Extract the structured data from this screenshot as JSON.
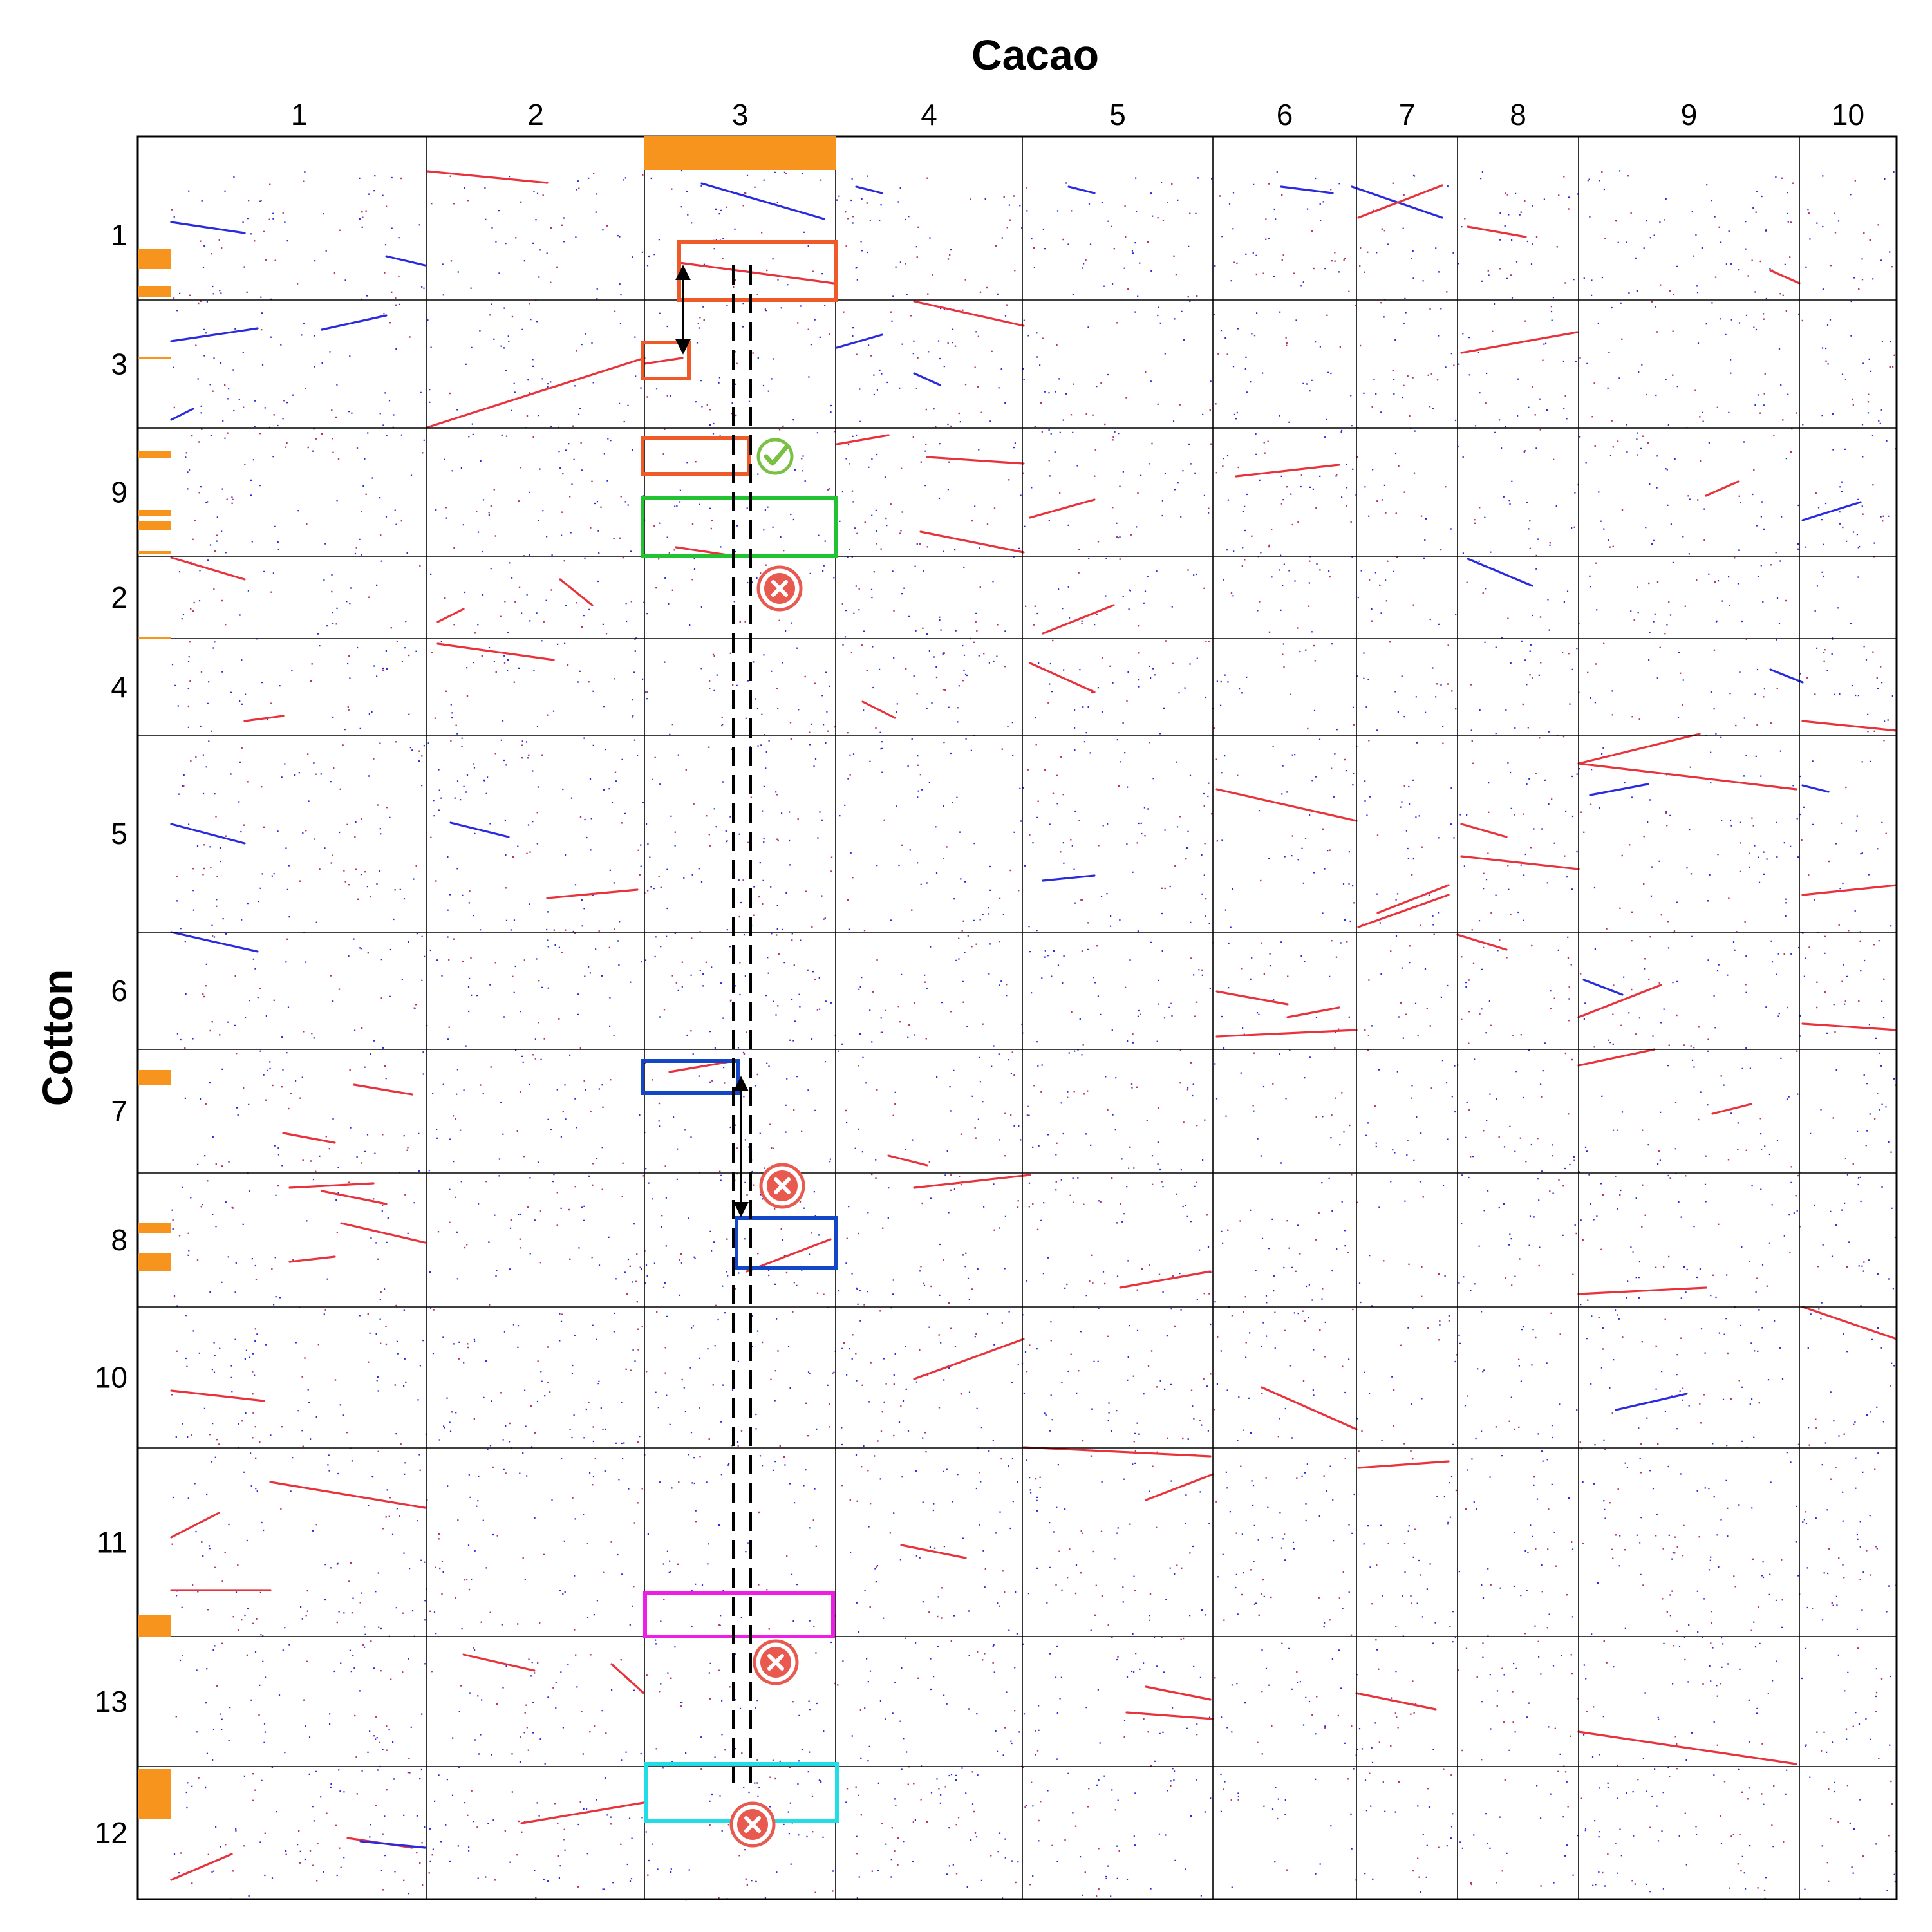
{
  "x_axis_title": "Cacao",
  "y_axis_title": "Cotton",
  "cacao_chromosomes": [
    "1",
    "2",
    "3",
    "4",
    "5",
    "6",
    "7",
    "8",
    "9",
    "10"
  ],
  "cotton_chromosomes": [
    "1",
    "3",
    "9",
    "2",
    "4",
    "5",
    "6",
    "7",
    "8",
    "10",
    "11",
    "13",
    "12"
  ],
  "colors": {
    "grid": "#000000",
    "blue_dots": "#2a2ae0",
    "red_dots": "#e8323c",
    "highlight_bar": "#f7941d",
    "box_orange": "#f05a28",
    "box_green": "#22c232",
    "box_blue": "#1446c8",
    "box_magenta": "#ee1ee6",
    "box_cyan": "#22dce6",
    "check_mark": "#7ac143",
    "cross_mark": "#e85a4f"
  },
  "highlight_boxes": [
    {
      "color": "box_orange",
      "col": "3",
      "row": "1"
    },
    {
      "color": "box_orange",
      "col": "3",
      "row": "3"
    },
    {
      "color": "box_orange",
      "col": "3",
      "row": "9"
    },
    {
      "color": "box_green",
      "col": "3",
      "row": "9"
    },
    {
      "color": "box_blue",
      "col": "3",
      "row": "7"
    },
    {
      "color": "box_blue",
      "col": "3",
      "row": "8"
    },
    {
      "color": "box_magenta",
      "col": "3",
      "row": "11"
    },
    {
      "color": "box_cyan",
      "col": "3",
      "row": "12"
    }
  ],
  "markers": [
    {
      "type": "check-icon",
      "row": "9"
    },
    {
      "type": "cross-icon",
      "row": "2"
    },
    {
      "type": "cross-icon",
      "row": "8"
    },
    {
      "type": "cross-icon",
      "row": "13"
    },
    {
      "type": "cross-icon",
      "row": "12"
    }
  ]
}
